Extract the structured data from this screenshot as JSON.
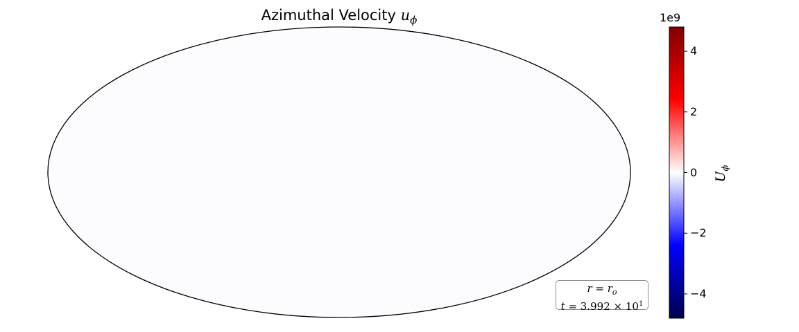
{
  "chart_data": {
    "type": "heatmap",
    "projection": "mollweide",
    "title": {
      "text": "Azimuthal Velocity",
      "math_symbol": "u",
      "math_subscript": "ϕ"
    },
    "colorbar": {
      "colormap": "seismic",
      "colors": [
        "#00004c",
        "#0000ff",
        "#ffffff",
        "#ff0000",
        "#7f0000"
      ],
      "range": [
        -4.8,
        4.8
      ],
      "exponent_label": "1e9",
      "ticks": [
        4,
        2,
        0,
        -2,
        -4
      ],
      "tick_labels": [
        "4",
        "2",
        "0",
        "−2",
        "−4"
      ],
      "label_symbol": "U",
      "label_subscript": "ϕ"
    },
    "map_fill_color": "#fcfcfe",
    "annotation": {
      "line1_lhs": "r",
      "line1_rhs": "r",
      "line1_rhs_subscript": "o",
      "line2_lhs": "t",
      "line2_mantissa": "3.992",
      "line2_base": "10",
      "line2_exponent": "1"
    }
  }
}
